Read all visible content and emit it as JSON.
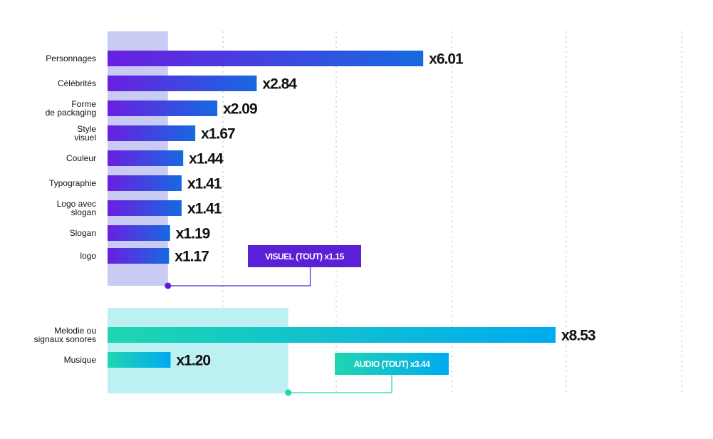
{
  "chart_data": [
    {
      "type": "bar",
      "orientation": "horizontal",
      "name": "visuel",
      "categories": [
        [
          "Personnages"
        ],
        [
          "Célébrités"
        ],
        [
          "Forme",
          "de packaging"
        ],
        [
          "Style",
          "visuel"
        ],
        [
          "Couleur"
        ],
        [
          "Typographie"
        ],
        [
          "Logo avec",
          "slogan"
        ],
        [
          "Slogan"
        ],
        [
          "logo"
        ]
      ],
      "values": [
        6.01,
        2.84,
        2.09,
        1.67,
        1.44,
        1.41,
        1.41,
        1.19,
        1.17
      ],
      "value_labels": [
        "x6.01",
        "x2.84",
        "x2.09",
        "x1.67",
        "x1.44",
        "x1.41",
        "x1.41",
        "x1.19",
        "x1.17"
      ],
      "average": {
        "label": "VISUEL (TOUT) x1.15",
        "value": 1.15
      },
      "gradient": [
        "#6a1fe0",
        "#1769e0"
      ],
      "band_color": "#c9cbf5",
      "accent": "#5a1fd6",
      "xlim": [
        0,
        8.53
      ],
      "grid": "dotted vertical"
    },
    {
      "type": "bar",
      "orientation": "horizontal",
      "name": "audio",
      "categories": [
        [
          "Melodie ou",
          "signaux sonores"
        ],
        [
          "Musique"
        ]
      ],
      "values": [
        8.53,
        1.2
      ],
      "value_labels": [
        "x8.53",
        "x1.20"
      ],
      "average": {
        "label": "AUDIO (TOUT) x3.44",
        "value": 3.44
      },
      "gradient": [
        "#1fd6b0",
        "#00aaf0"
      ],
      "band_color": "#bdf0f2",
      "accent": "#1fd6b0",
      "xlim": [
        0,
        8.53
      ],
      "grid": "dotted vertical"
    }
  ]
}
